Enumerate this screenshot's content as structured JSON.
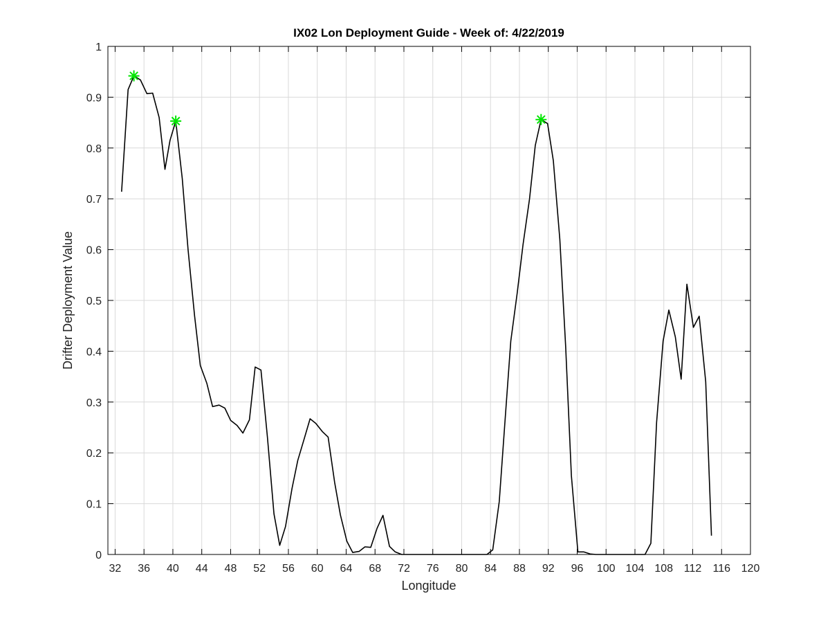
{
  "chart_data": {
    "type": "line",
    "title": "IX02 Lon Deployment Guide - Week of: 4/22/2019",
    "xlabel": "Longitude",
    "ylabel": "Drifter Deployment Value",
    "xlim": [
      31,
      120
    ],
    "ylim": [
      0,
      1
    ],
    "x_ticks": [
      32,
      36,
      40,
      44,
      48,
      52,
      56,
      60,
      64,
      68,
      72,
      76,
      80,
      84,
      88,
      92,
      96,
      100,
      104,
      108,
      112,
      116,
      120
    ],
    "y_ticks": [
      0,
      0.1,
      0.2,
      0.3,
      0.4,
      0.5,
      0.6,
      0.7,
      0.8,
      0.9,
      1
    ],
    "grid": true,
    "series": [
      {
        "color": "#000000",
        "x": [
          32.9,
          33.8,
          34.6,
          35.5,
          36.4,
          37.2,
          38.1,
          38.9,
          39.6,
          40.4,
          41.3,
          42.1,
          43.0,
          43.8,
          44.7,
          45.5,
          46.4,
          47.2,
          48.0,
          48.9,
          49.7,
          50.6,
          51.4,
          52.2,
          53.1,
          54.0,
          54.8,
          55.6,
          56.5,
          57.3,
          58.2,
          59.0,
          59.8,
          60.7,
          61.5,
          62.4,
          63.2,
          64.1,
          64.9,
          65.8,
          66.6,
          67.4,
          68.3,
          69.1,
          70.0,
          70.8,
          71.7,
          72.5,
          73.4,
          74.2,
          75.0,
          75.9,
          76.7,
          77.6,
          78.4,
          79.3,
          80.1,
          81.0,
          81.8,
          82.6,
          83.5,
          84.3,
          85.2,
          86.0,
          86.8,
          87.7,
          88.5,
          89.4,
          90.2,
          91.0,
          91.9,
          92.7,
          93.6,
          94.4,
          95.2,
          96.1,
          96.9,
          97.8,
          98.6,
          99.4,
          100.3,
          101.1,
          102.0,
          102.8,
          103.7,
          104.5,
          105.4,
          106.2,
          107.0,
          107.9,
          108.7,
          109.6,
          110.4,
          111.2,
          112.1,
          112.9,
          113.8,
          114.6
        ],
        "values": [
          0.714,
          0.915,
          0.942,
          0.934,
          0.907,
          0.908,
          0.86,
          0.758,
          0.815,
          0.853,
          0.74,
          0.6,
          0.47,
          0.372,
          0.337,
          0.291,
          0.294,
          0.288,
          0.264,
          0.254,
          0.239,
          0.265,
          0.369,
          0.363,
          0.23,
          0.08,
          0.018,
          0.055,
          0.13,
          0.185,
          0.228,
          0.267,
          0.258,
          0.242,
          0.231,
          0.142,
          0.078,
          0.026,
          0.004,
          0.006,
          0.015,
          0.014,
          0.052,
          0.077,
          0.016,
          0.005,
          0.0,
          0.0,
          0.0,
          0.0,
          0.0,
          0.0,
          0.0,
          0.0,
          0.0,
          0.0,
          0.0,
          0.0,
          0.0,
          0.0,
          0.0,
          0.009,
          0.104,
          0.262,
          0.42,
          0.515,
          0.61,
          0.7,
          0.805,
          0.856,
          0.848,
          0.775,
          0.62,
          0.41,
          0.155,
          0.005,
          0.005,
          0.001,
          0.0,
          0.0,
          0.0,
          0.0,
          0.0,
          0.0,
          0.0,
          0.0,
          0.0,
          0.022,
          0.26,
          0.42,
          0.481,
          0.428,
          0.345,
          0.532,
          0.447,
          0.469,
          0.34,
          0.037
        ]
      }
    ],
    "markers": {
      "color": "#00e600",
      "shape": "asterisk",
      "points": [
        {
          "x": 34.6,
          "y": 0.942
        },
        {
          "x": 40.4,
          "y": 0.853
        },
        {
          "x": 91.0,
          "y": 0.856
        }
      ]
    }
  }
}
